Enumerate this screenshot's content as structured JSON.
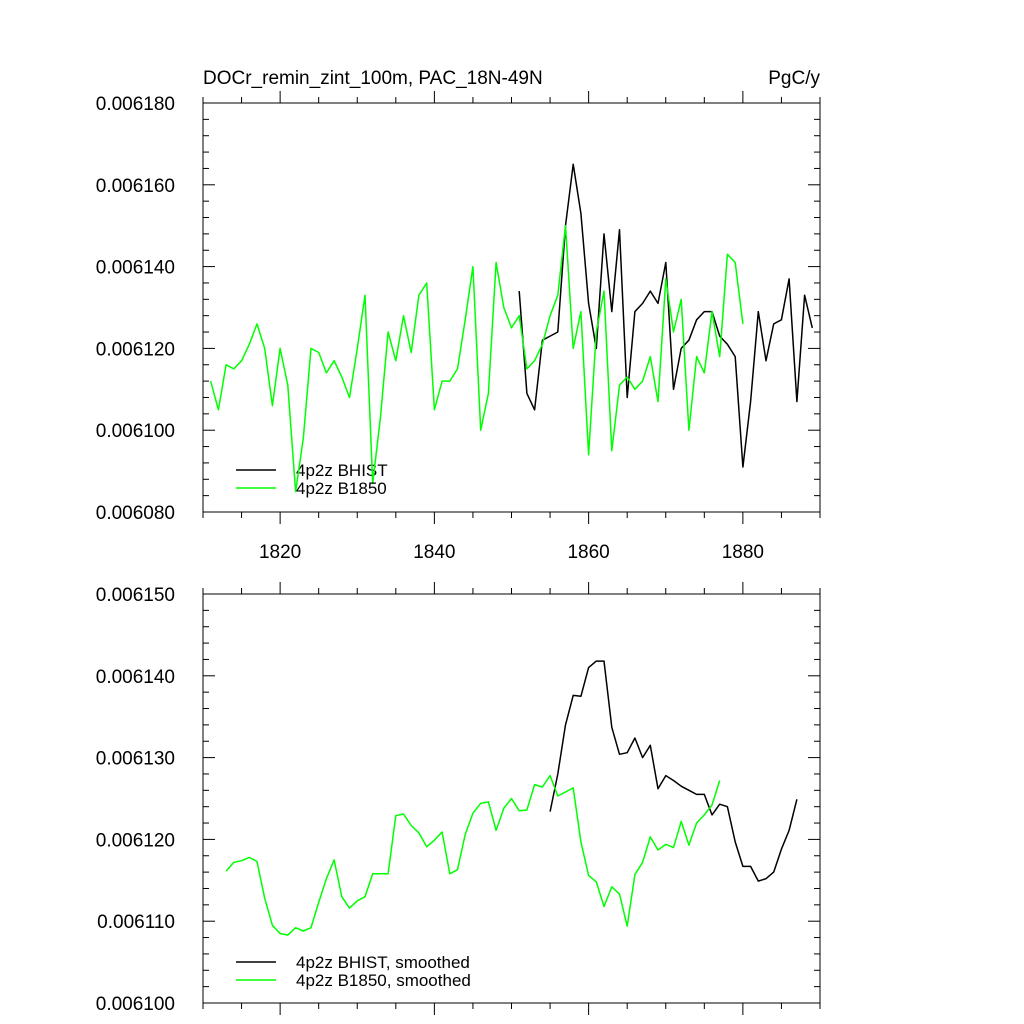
{
  "chart_data": [
    {
      "type": "line",
      "title": "DOCr_remin_zint_100m, PAC_18N-49N",
      "units": "PgC/y",
      "xlim": [
        1810,
        1890
      ],
      "ylim": [
        0.00608,
        0.00618
      ],
      "x_ticks": [
        "1820",
        "1840",
        "1860",
        "1880"
      ],
      "y_ticks": [
        "0.006080",
        "0.006100",
        "0.006120",
        "0.006140",
        "0.006160",
        "0.006180"
      ],
      "legend_position": "bottom-left",
      "series": [
        {
          "name": "4p2z BHIST",
          "color": "#000000",
          "x": [
            1851,
            1852,
            1853,
            1854,
            1855,
            1856,
            1857,
            1858,
            1859,
            1860,
            1861,
            1862,
            1863,
            1864,
            1865,
            1866,
            1867,
            1868,
            1869,
            1870,
            1871,
            1872,
            1873,
            1874,
            1875,
            1876,
            1877,
            1878,
            1879,
            1880,
            1881,
            1882,
            1883,
            1884,
            1885,
            1886,
            1887,
            1888,
            1889
          ],
          "y": [
            0.006134,
            0.006109,
            0.006105,
            0.006122,
            0.006123,
            0.006124,
            0.00615,
            0.006165,
            0.006153,
            0.006131,
            0.00612,
            0.006148,
            0.006129,
            0.006149,
            0.006108,
            0.006129,
            0.006131,
            0.006134,
            0.006131,
            0.006141,
            0.00611,
            0.00612,
            0.006122,
            0.006127,
            0.006129,
            0.006129,
            0.006123,
            0.006121,
            0.006118,
            0.006091,
            0.006107,
            0.006129,
            0.006117,
            0.006126,
            0.006127,
            0.006137,
            0.006107,
            0.006133,
            0.006125
          ]
        },
        {
          "name": "4p2z B1850",
          "color": "#00ff00",
          "x": [
            1811,
            1812,
            1813,
            1814,
            1815,
            1816,
            1817,
            1818,
            1819,
            1820,
            1821,
            1822,
            1823,
            1824,
            1825,
            1826,
            1827,
            1828,
            1829,
            1830,
            1831,
            1832,
            1833,
            1834,
            1835,
            1836,
            1837,
            1838,
            1839,
            1840,
            1841,
            1842,
            1843,
            1844,
            1845,
            1846,
            1847,
            1848,
            1849,
            1850,
            1851,
            1852,
            1853,
            1854,
            1855,
            1856,
            1857,
            1858,
            1859,
            1860,
            1861,
            1862,
            1863,
            1864,
            1865,
            1866,
            1867,
            1868,
            1869,
            1870,
            1871,
            1872,
            1873,
            1874,
            1875,
            1876,
            1877,
            1878,
            1879,
            1880
          ],
          "y": [
            0.006112,
            0.006105,
            0.006116,
            0.006115,
            0.006117,
            0.006121,
            0.006126,
            0.00612,
            0.006106,
            0.00612,
            0.006111,
            0.006085,
            0.006098,
            0.00612,
            0.006119,
            0.006114,
            0.006117,
            0.006113,
            0.006108,
            0.00612,
            0.006133,
            0.006087,
            0.006103,
            0.006124,
            0.006117,
            0.006128,
            0.006119,
            0.006133,
            0.006136,
            0.006105,
            0.006112,
            0.006112,
            0.006115,
            0.006127,
            0.00614,
            0.0061,
            0.006109,
            0.006141,
            0.00613,
            0.006125,
            0.006128,
            0.006115,
            0.006117,
            0.006121,
            0.006128,
            0.006133,
            0.00615,
            0.00612,
            0.006129,
            0.006094,
            0.006124,
            0.006134,
            0.006095,
            0.006111,
            0.006113,
            0.00611,
            0.006112,
            0.006118,
            0.006107,
            0.006137,
            0.006124,
            0.006132,
            0.0061,
            0.006118,
            0.006114,
            0.006129,
            0.006118,
            0.006143,
            0.006141,
            0.006126
          ]
        }
      ]
    },
    {
      "type": "line",
      "xlim": [
        1810,
        1890
      ],
      "ylim": [
        0.0061,
        0.00615
      ],
      "y_ticks": [
        "0.006100",
        "0.006110",
        "0.006120",
        "0.006130",
        "0.006140",
        "0.006150"
      ],
      "legend_position": "bottom-left",
      "series": [
        {
          "name": "4p2z BHIST, smoothed",
          "color": "#000000",
          "x": [
            1855,
            1856,
            1857,
            1858,
            1859,
            1860,
            1861,
            1862,
            1863,
            1864,
            1865,
            1866,
            1867,
            1868,
            1869,
            1870,
            1871,
            1872,
            1873,
            1874,
            1875,
            1876,
            1877,
            1878,
            1879,
            1880,
            1881,
            1882,
            1883,
            1884,
            1885,
            1886,
            1887
          ],
          "y": [
            0.0061234,
            0.006128,
            0.006134,
            0.0061376,
            0.0061375,
            0.006141,
            0.0061418,
            0.0061418,
            0.0061337,
            0.0061304,
            0.0061306,
            0.0061324,
            0.00613,
            0.0061315,
            0.0061262,
            0.0061278,
            0.0061272,
            0.0061265,
            0.006126,
            0.0061255,
            0.0061255,
            0.006123,
            0.0061243,
            0.006124,
            0.0061197,
            0.0061167,
            0.0061167,
            0.0061149,
            0.0061152,
            0.006116,
            0.0061188,
            0.0061211,
            0.0061249
          ]
        },
        {
          "name": "4p2z B1850, smoothed",
          "color": "#00ff00",
          "x": [
            1813,
            1814,
            1815,
            1816,
            1817,
            1818,
            1819,
            1820,
            1821,
            1822,
            1823,
            1824,
            1825,
            1826,
            1827,
            1828,
            1829,
            1830,
            1831,
            1832,
            1833,
            1834,
            1835,
            1836,
            1837,
            1838,
            1839,
            1840,
            1841,
            1842,
            1843,
            1844,
            1845,
            1846,
            1847,
            1848,
            1849,
            1850,
            1851,
            1852,
            1853,
            1854,
            1855,
            1856,
            1857,
            1858,
            1859,
            1860,
            1861,
            1862,
            1863,
            1864,
            1865,
            1866,
            1867,
            1868,
            1869,
            1870,
            1871,
            1872,
            1873,
            1874,
            1875,
            1876,
            1877
          ],
          "y": [
            0.0061161,
            0.0061172,
            0.0061174,
            0.0061178,
            0.0061173,
            0.0061128,
            0.0061095,
            0.0061085,
            0.0061083,
            0.0061092,
            0.0061088,
            0.0061092,
            0.0061123,
            0.0061152,
            0.0061175,
            0.006113,
            0.0061116,
            0.0061125,
            0.006113,
            0.0061158,
            0.0061158,
            0.0061158,
            0.0061229,
            0.0061231,
            0.0061217,
            0.0061208,
            0.0061191,
            0.0061199,
            0.0061209,
            0.0061158,
            0.0061163,
            0.0061206,
            0.0061232,
            0.0061244,
            0.0061246,
            0.0061211,
            0.0061238,
            0.006125,
            0.0061235,
            0.0061236,
            0.0061267,
            0.0061264,
            0.0061278,
            0.0061253,
            0.0061258,
            0.0061263,
            0.0061197,
            0.0061156,
            0.0061148,
            0.0061118,
            0.0061142,
            0.0061133,
            0.0061094,
            0.0061157,
            0.0061172,
            0.0061203,
            0.0061187,
            0.0061194,
            0.006119,
            0.0061222,
            0.0061193,
            0.006122,
            0.006123,
            0.0061242,
            0.0061272
          ]
        }
      ]
    }
  ]
}
